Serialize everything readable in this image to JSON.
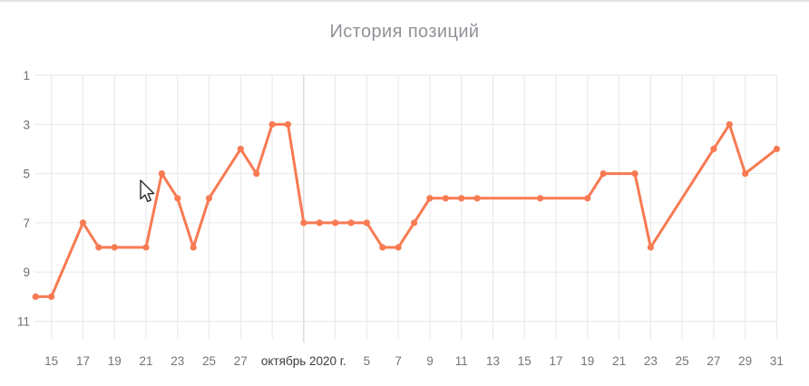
{
  "panel": {
    "title": "История позиций"
  },
  "colors": {
    "accent": "#f87a52",
    "grid": "#e7e7e7",
    "month_grid": "#cccccc",
    "axis_label": "#757575",
    "month_label": "#3c3c3c",
    "y_label": "#6e6e6e",
    "title": "#8f9398",
    "top_border": "#e4e4e4"
  },
  "chart_data": {
    "type": "line",
    "title": "История позиций",
    "legend": "none",
    "y_axis": {
      "inverted": true,
      "grid": true,
      "ticks": [
        1,
        3,
        5,
        7,
        9,
        11
      ],
      "range": [
        1,
        11
      ]
    },
    "x_axis": {
      "grid": true,
      "note": "days from 14 сентября 2020 (day 0) to 31 октября 2020 (day 47), gridline every 2 days",
      "gridlines": [
        {
          "day": 1,
          "label": "15"
        },
        {
          "day": 3,
          "label": "17"
        },
        {
          "day": 5,
          "label": "19"
        },
        {
          "day": 7,
          "label": "21"
        },
        {
          "day": 9,
          "label": "23"
        },
        {
          "day": 11,
          "label": "25"
        },
        {
          "day": 13,
          "label": "27"
        },
        {
          "day": 15,
          "label": ""
        },
        {
          "day": 17,
          "label": "октябрь 2020 г.",
          "month_boundary": true
        },
        {
          "day": 19,
          "label": ""
        },
        {
          "day": 21,
          "label": "5"
        },
        {
          "day": 23,
          "label": "7"
        },
        {
          "day": 25,
          "label": "9"
        },
        {
          "day": 27,
          "label": "11"
        },
        {
          "day": 29,
          "label": "13"
        },
        {
          "day": 31,
          "label": "15"
        },
        {
          "day": 33,
          "label": "17"
        },
        {
          "day": 35,
          "label": "19"
        },
        {
          "day": 37,
          "label": "21"
        },
        {
          "day": 39,
          "label": "23"
        },
        {
          "day": 41,
          "label": "25"
        },
        {
          "day": 43,
          "label": "27"
        },
        {
          "day": 45,
          "label": "29"
        },
        {
          "day": 47,
          "label": "31"
        }
      ]
    },
    "series": [
      {
        "name": "История позиций",
        "color": "#f87a52",
        "points": [
          {
            "date": "2020-09-14",
            "day": 0,
            "position": 10
          },
          {
            "date": "2020-09-15",
            "day": 1,
            "position": 10
          },
          {
            "date": "2020-09-17",
            "day": 3,
            "position": 7
          },
          {
            "date": "2020-09-18",
            "day": 4,
            "position": 8
          },
          {
            "date": "2020-09-19",
            "day": 5,
            "position": 8
          },
          {
            "date": "2020-09-21",
            "day": 7,
            "position": 8
          },
          {
            "date": "2020-09-22",
            "day": 8,
            "position": 5
          },
          {
            "date": "2020-09-23",
            "day": 9,
            "position": 6
          },
          {
            "date": "2020-09-24",
            "day": 10,
            "position": 8
          },
          {
            "date": "2020-09-25",
            "day": 11,
            "position": 6
          },
          {
            "date": "2020-09-27",
            "day": 13,
            "position": 4
          },
          {
            "date": "2020-09-28",
            "day": 14,
            "position": 5
          },
          {
            "date": "2020-09-29",
            "day": 15,
            "position": 3
          },
          {
            "date": "2020-09-30",
            "day": 16,
            "position": 3
          },
          {
            "date": "2020-10-01",
            "day": 17,
            "position": 7
          },
          {
            "date": "2020-10-02",
            "day": 18,
            "position": 7
          },
          {
            "date": "2020-10-03",
            "day": 19,
            "position": 7
          },
          {
            "date": "2020-10-04",
            "day": 20,
            "position": 7
          },
          {
            "date": "2020-10-05",
            "day": 21,
            "position": 7
          },
          {
            "date": "2020-10-06",
            "day": 22,
            "position": 8
          },
          {
            "date": "2020-10-07",
            "day": 23,
            "position": 8
          },
          {
            "date": "2020-10-08",
            "day": 24,
            "position": 7
          },
          {
            "date": "2020-10-09",
            "day": 25,
            "position": 6
          },
          {
            "date": "2020-10-10",
            "day": 26,
            "position": 6
          },
          {
            "date": "2020-10-11",
            "day": 27,
            "position": 6
          },
          {
            "date": "2020-10-12",
            "day": 28,
            "position": 6
          },
          {
            "date": "2020-10-16",
            "day": 32,
            "position": 6
          },
          {
            "date": "2020-10-19",
            "day": 35,
            "position": 6
          },
          {
            "date": "2020-10-20",
            "day": 36,
            "position": 5
          },
          {
            "date": "2020-10-22",
            "day": 38,
            "position": 5
          },
          {
            "date": "2020-10-23",
            "day": 39,
            "position": 8
          },
          {
            "date": "2020-10-27",
            "day": 43,
            "position": 4
          },
          {
            "date": "2020-10-28",
            "day": 44,
            "position": 3
          },
          {
            "date": "2020-10-29",
            "day": 45,
            "position": 5
          },
          {
            "date": "2020-10-31",
            "day": 47,
            "position": 4
          }
        ]
      }
    ]
  }
}
